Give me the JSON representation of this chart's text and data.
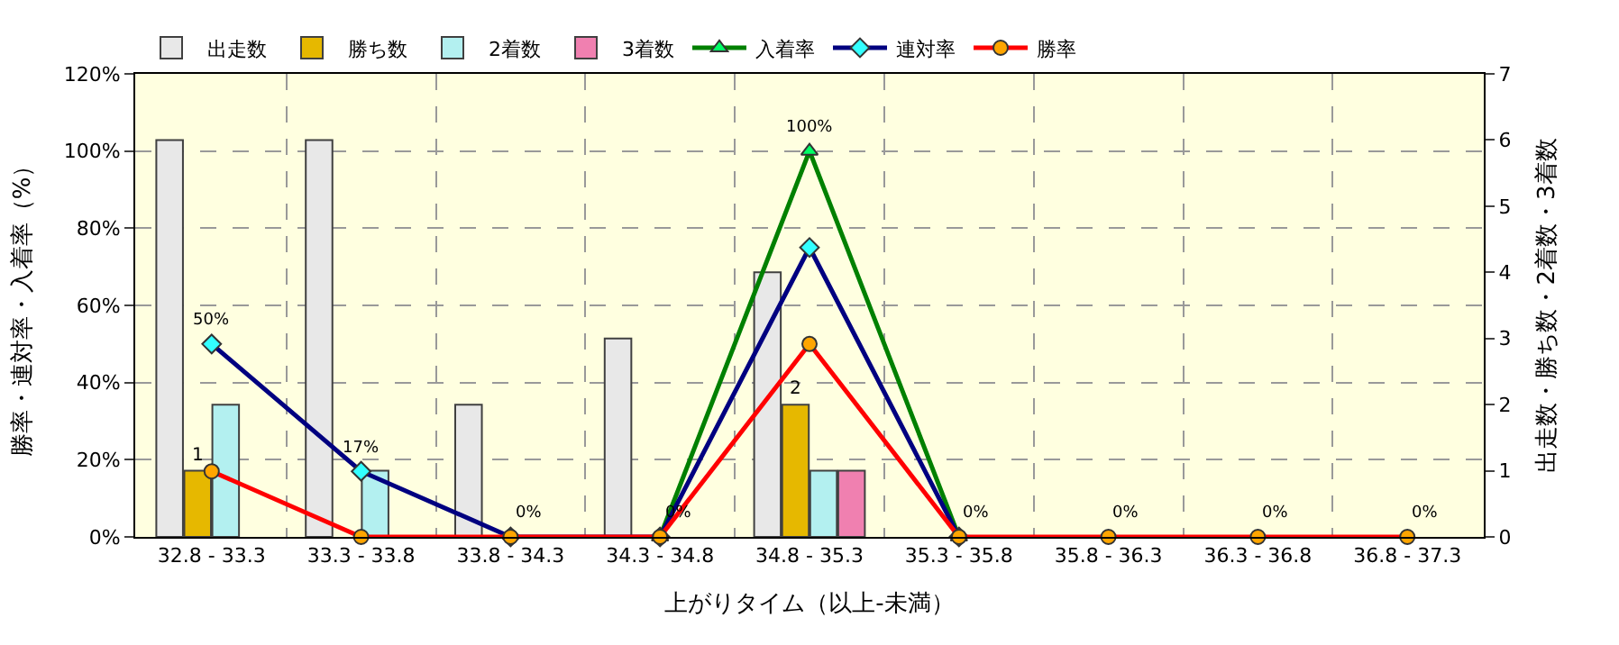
{
  "chart_data": {
    "type": "bar",
    "xlabel": "上がりタイム（以上-未満）",
    "ylabel": "勝率・連対率・入着率（%）",
    "y2label": "出走数・勝ち数・2着数・3着数",
    "categories": [
      "32.8 - 33.3",
      "33.3 - 33.8",
      "33.8 - 34.3",
      "34.3 - 34.8",
      "34.8 - 35.3",
      "35.3 - 35.8",
      "35.8 - 36.3",
      "36.3 - 36.8",
      "36.8 - 37.3"
    ],
    "series": [
      {
        "name": "出走数",
        "axis": "y2",
        "color": "#e8e8e8",
        "values": [
          6,
          6,
          2,
          3,
          4,
          null,
          null,
          null,
          null
        ]
      },
      {
        "name": "勝ち数",
        "axis": "y2",
        "color": "#e6b800",
        "values": [
          1,
          null,
          null,
          null,
          2,
          null,
          null,
          null,
          null
        ],
        "value_labels": [
          "1",
          null,
          null,
          null,
          "2",
          null,
          null,
          null,
          null
        ]
      },
      {
        "name": "2着数",
        "axis": "y2",
        "color": "#b3f0f0",
        "values": [
          2,
          1,
          null,
          null,
          1,
          null,
          null,
          null,
          null
        ]
      },
      {
        "name": "3着数",
        "axis": "y2",
        "color": "#f080b0",
        "values": [
          null,
          null,
          null,
          null,
          1,
          null,
          null,
          null,
          null
        ]
      },
      {
        "name": "入着率",
        "type": "line",
        "axis": "y",
        "color": "#008000",
        "marker": "triangle",
        "values": [
          null,
          null,
          null,
          0,
          100,
          0,
          null,
          null,
          null
        ]
      },
      {
        "name": "連対率",
        "type": "line",
        "axis": "y",
        "color": "#000080",
        "marker": "diamond",
        "values": [
          50,
          17,
          0,
          0,
          75,
          0,
          null,
          null,
          null
        ]
      },
      {
        "name": "勝率",
        "type": "line",
        "axis": "y",
        "color": "#ff0000",
        "marker": "circle",
        "values": [
          17,
          0,
          0,
          0,
          50,
          0,
          0,
          0,
          0
        ]
      }
    ],
    "annotations": [
      {
        "text": "50%",
        "x": "32.8 - 33.3",
        "y": 50
      },
      {
        "text": "17%",
        "x": "33.3 - 33.8",
        "y": 17
      },
      {
        "text": "0%",
        "x": "33.8 - 34.3",
        "y": 0
      },
      {
        "text": "0%",
        "x": "34.3 - 34.8",
        "y": 0
      },
      {
        "text": "100%",
        "x": "34.8 - 35.3",
        "y": 100
      },
      {
        "text": "0%",
        "x": "35.3 - 35.8",
        "y": 0
      },
      {
        "text": "0%",
        "x": "35.8 - 36.3",
        "y": 0
      },
      {
        "text": "0%",
        "x": "36.3 - 36.8",
        "y": 0
      },
      {
        "text": "0%",
        "x": "36.8 - 37.3",
        "y": 0
      }
    ],
    "ylim": [
      0,
      120
    ],
    "yticks": [
      {
        "value": 0,
        "label": "0%"
      },
      {
        "value": 20,
        "label": "20%"
      },
      {
        "value": 40,
        "label": "40%"
      },
      {
        "value": 60,
        "label": "60%"
      },
      {
        "value": 80,
        "label": "80%"
      },
      {
        "value": 100,
        "label": "100%"
      },
      {
        "value": 120,
        "label": "120%"
      }
    ],
    "y2lim": [
      0,
      7
    ],
    "y2ticks": [
      0,
      1,
      2,
      3,
      4,
      5,
      6,
      7
    ],
    "grid": true,
    "legend": "top left"
  }
}
